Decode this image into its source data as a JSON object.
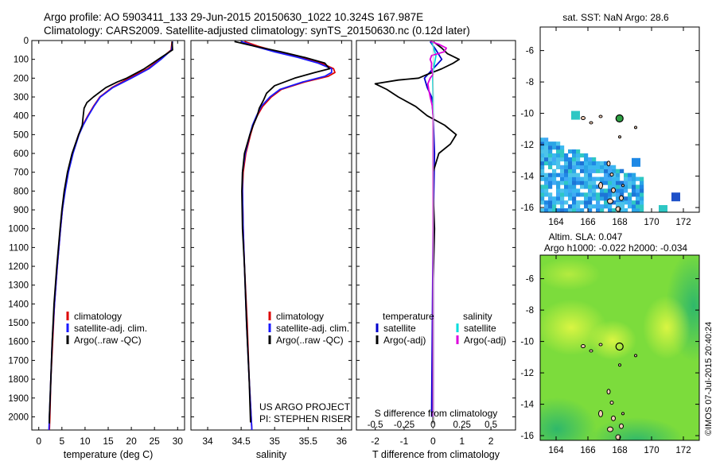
{
  "header": {
    "title_line1": "Argo profile: AO 5903411_133 29-Jun-2015 20150630_1022 10.324S 167.987E",
    "title_line2": "Climatology: CARS2009. Satellite-adjusted climatology: synTS_20150630.nc (0.12d later)"
  },
  "chart_data": [
    {
      "id": "temperature",
      "type": "line",
      "xlabel": "temperature (deg C)",
      "ylabel": "depth",
      "xlim": [
        -1.5,
        31.5
      ],
      "ylim": [
        0,
        2070
      ],
      "xticks": [
        0,
        5,
        10,
        15,
        20,
        25,
        30
      ],
      "yticks": [
        0,
        100,
        200,
        300,
        400,
        500,
        600,
        700,
        800,
        900,
        1000,
        1100,
        1200,
        1300,
        1400,
        1500,
        1600,
        1700,
        1800,
        1900,
        2000
      ],
      "legend": [
        "climatology",
        "satellite-adj. clim.",
        "Argo(..raw -QC)"
      ],
      "series": [
        {
          "name": "climatology",
          "color": "#dd0000",
          "depth": [
            5,
            50,
            100,
            150,
            200,
            250,
            300,
            350,
            400,
            450,
            500,
            600,
            700,
            800,
            900,
            1000,
            1200,
            1400,
            1600,
            1800,
            2000,
            2070
          ],
          "values": [
            28.8,
            28.6,
            26.2,
            23.5,
            19.5,
            15.8,
            13.2,
            11.8,
            10.6,
            9.5,
            8.6,
            7.3,
            6.3,
            5.6,
            5.1,
            4.7,
            4.0,
            3.4,
            3.0,
            2.6,
            2.4,
            2.3
          ]
        },
        {
          "name": "satellite-adj. clim.",
          "color": "#1a1aff",
          "depth": [
            5,
            50,
            100,
            150,
            200,
            250,
            300,
            350,
            400,
            450,
            500,
            600,
            700,
            800,
            900,
            1000,
            1200,
            1400,
            1600,
            1800,
            2000,
            2070
          ],
          "values": [
            28.9,
            28.7,
            26.4,
            23.8,
            20.0,
            16.0,
            13.3,
            11.9,
            10.7,
            9.6,
            8.7,
            7.4,
            6.4,
            5.7,
            5.1,
            4.7,
            4.0,
            3.4,
            2.9,
            2.6,
            2.3,
            2.2
          ]
        },
        {
          "name": "Argo(..raw -QC)",
          "color": "#000000",
          "depth": [
            5,
            50,
            100,
            150,
            200,
            220,
            250,
            300,
            330,
            360,
            400,
            450,
            500,
            600,
            700,
            800,
            900,
            1000,
            1200,
            1400,
            1600,
            1800,
            2000,
            2035
          ],
          "values": [
            28.8,
            28.9,
            25.8,
            22.8,
            19.0,
            17.0,
            14.5,
            11.8,
            10.4,
            9.8,
            9.6,
            9.4,
            8.6,
            7.2,
            6.2,
            5.5,
            5.0,
            4.6,
            3.9,
            3.3,
            2.9,
            2.6,
            2.3,
            2.3
          ]
        }
      ]
    },
    {
      "id": "salinity",
      "type": "line",
      "xlabel": "salinity",
      "xlim": [
        33.75,
        36.15
      ],
      "ylim": [
        0,
        2070
      ],
      "xticks": [
        34,
        34.5,
        35,
        35.5,
        36
      ],
      "xtick_labels": [
        "34",
        "34.5",
        "35",
        "35.5",
        "36"
      ],
      "legend": [
        "climatology",
        "satellite-adj. clim.",
        "Argo(..raw -QC)"
      ],
      "annotation": [
        "US ARGO PROJECT",
        "PI: STEPHEN RISER"
      ],
      "series": [
        {
          "name": "climatology",
          "color": "#dd0000",
          "depth": [
            5,
            30,
            60,
            90,
            120,
            150,
            170,
            190,
            220,
            260,
            300,
            350,
            400,
            450,
            500,
            600,
            700,
            800,
            1000,
            1200,
            1500,
            1800,
            2070
          ],
          "values": [
            34.55,
            34.75,
            35.05,
            35.4,
            35.7,
            35.88,
            35.9,
            35.8,
            35.45,
            35.1,
            34.95,
            34.82,
            34.74,
            34.68,
            34.64,
            34.57,
            34.53,
            34.52,
            34.53,
            34.55,
            34.59,
            34.62,
            34.66
          ]
        },
        {
          "name": "satellite-adj. clim.",
          "color": "#1a1aff",
          "depth": [
            5,
            30,
            60,
            90,
            120,
            150,
            170,
            190,
            220,
            260,
            300,
            350,
            400,
            450,
            500,
            600,
            700,
            800,
            1000,
            1200,
            1500,
            1800,
            2070
          ],
          "values": [
            34.5,
            34.7,
            35.0,
            35.35,
            35.65,
            35.85,
            35.85,
            35.75,
            35.42,
            35.08,
            34.93,
            34.8,
            34.73,
            34.67,
            34.63,
            34.56,
            34.52,
            34.52,
            34.53,
            34.55,
            34.58,
            34.62,
            34.66
          ]
        },
        {
          "name": "Argo(..raw -QC)",
          "color": "#000000",
          "depth": [
            5,
            30,
            60,
            90,
            120,
            150,
            170,
            200,
            240,
            280,
            320,
            360,
            400,
            450,
            500,
            600,
            700,
            800,
            1000,
            1200,
            1500,
            1800,
            2030
          ],
          "values": [
            34.4,
            34.7,
            35.1,
            35.45,
            35.75,
            35.82,
            35.6,
            35.3,
            35.0,
            34.88,
            34.83,
            34.77,
            34.74,
            34.68,
            34.63,
            34.55,
            34.52,
            34.51,
            34.52,
            34.55,
            34.58,
            34.62,
            34.64
          ]
        }
      ]
    },
    {
      "id": "difference",
      "type": "line",
      "xlabel": "T difference from climatology",
      "xlabel_top": "S difference from climatology",
      "xlim": [
        -2.65,
        2.85
      ],
      "ylim": [
        0,
        2070
      ],
      "xticks": [
        -2,
        -1,
        0,
        1,
        2
      ],
      "top_ticks": [
        -0.5,
        -0.25,
        0,
        0.25,
        0.5
      ],
      "top_tick_labels": [
        "-0.5",
        "-0.25",
        "0",
        "0.25",
        "0.5"
      ],
      "legend_temperature": {
        "heading": "temperature",
        "items": [
          "satellite",
          "Argo(-adj)"
        ]
      },
      "legend_salinity": {
        "heading": "salinity",
        "items": [
          "satellite",
          "Argo(-adj)"
        ]
      },
      "series": [
        {
          "name": "temperature satellite",
          "color": "#0000cc",
          "depth": [
            5,
            50,
            100,
            150,
            200,
            250,
            300,
            400,
            600,
            1000,
            2000
          ],
          "values": [
            -0.1,
            0.1,
            0.3,
            0.0,
            -0.3,
            -0.2,
            -0.05,
            0.0,
            0.05,
            0.0,
            -0.05
          ]
        },
        {
          "name": "temperature Argo(-adj)",
          "color": "#000000",
          "depth": [
            5,
            40,
            70,
            100,
            120,
            150,
            180,
            200,
            210,
            230,
            260,
            300,
            350,
            400,
            450,
            500,
            550,
            600,
            700,
            800,
            1000,
            1300,
            1600,
            1800,
            2000,
            2035
          ],
          "values": [
            0.0,
            0.3,
            0.5,
            0.9,
            0.7,
            0.3,
            -0.2,
            -0.5,
            -1.2,
            -2.0,
            -1.6,
            -1.2,
            -0.6,
            -0.2,
            0.4,
            0.8,
            0.6,
            0.2,
            0.0,
            0.0,
            0.05,
            0.0,
            0.0,
            0.0,
            0.0,
            0.0
          ]
        },
        {
          "name": "salinity satellite",
          "color": "#00dddd",
          "depth": [
            5,
            40,
            80,
            120,
            160,
            200,
            300,
            500,
            800,
            1200,
            2000
          ],
          "values": [
            -0.05,
            0.02,
            0.1,
            0.05,
            0.0,
            -0.01,
            0.0,
            0.0,
            0.0,
            0.0,
            0.0
          ]
        },
        {
          "name": "salinity Argo(-adj)",
          "color": "#dd00dd",
          "depth": [
            5,
            20,
            40,
            60,
            80,
            100,
            120,
            150,
            180,
            200,
            230,
            260,
            300,
            350,
            400,
            500,
            700,
            1000,
            1500,
            2000
          ],
          "values": [
            -0.08,
            0.2,
            0.46,
            0.38,
            -0.05,
            -0.1,
            -0.05,
            -0.06,
            0.0,
            -0.1,
            -0.18,
            -0.15,
            -0.1,
            -0.02,
            0.0,
            0.0,
            0.0,
            0.0,
            0.0,
            0.0
          ]
        }
      ]
    },
    {
      "id": "sst_map",
      "type": "heatmap",
      "title": "sat. SST: NaN Argo: 28.6",
      "xlim": [
        163,
        173
      ],
      "ylim": [
        -16.3,
        -4.5
      ],
      "xticks": [
        164,
        166,
        168,
        170,
        172
      ],
      "yticks": [
        -6,
        -8,
        -10,
        -12,
        -14,
        -16
      ],
      "float_position": [
        167.987,
        -10.324
      ]
    },
    {
      "id": "sla_map",
      "type": "heatmap",
      "title_line1": "Altim. SLA: 0.047",
      "title_line2": "Argo h1000: -0.022 h2000: -0.034",
      "xlim": [
        163,
        173
      ],
      "ylim": [
        -16.3,
        -4.5
      ],
      "xticks": [
        164,
        166,
        168,
        170,
        172
      ],
      "yticks": [
        -6,
        -8,
        -10,
        -12,
        -14,
        -16
      ],
      "float_position": [
        167.987,
        -10.324
      ]
    }
  ],
  "footer": {
    "credit": "©IMOS 07-Jul-2015 20:40:24"
  }
}
